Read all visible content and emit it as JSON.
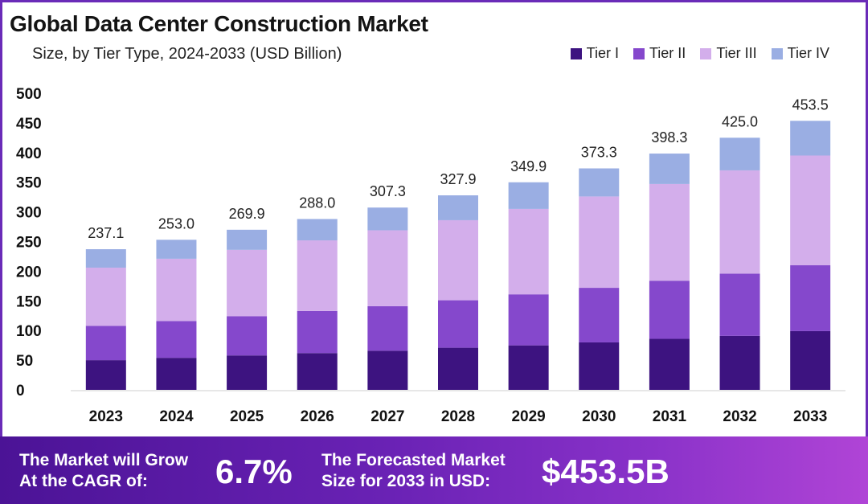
{
  "header": {
    "title": "Global Data Center Construction Market",
    "subtitle": "Size, by Tier Type, 2024-2033 (USD Billion)"
  },
  "legend": [
    {
      "label": "Tier I",
      "color": "#3d1380"
    },
    {
      "label": "Tier II",
      "color": "#8548cc"
    },
    {
      "label": "Tier III",
      "color": "#d3aeeb"
    },
    {
      "label": "Tier IV",
      "color": "#9aaee3"
    }
  ],
  "chart_data": {
    "type": "bar",
    "stacked": true,
    "categories": [
      "2023",
      "2024",
      "2025",
      "2026",
      "2027",
      "2028",
      "2029",
      "2030",
      "2031",
      "2032",
      "2033"
    ],
    "series": [
      {
        "name": "Tier I",
        "values": [
          50,
          54,
          58,
          62,
          66,
          71,
          75,
          80,
          86,
          91,
          99
        ]
      },
      {
        "name": "Tier II",
        "values": [
          58,
          62,
          66,
          71,
          75,
          80,
          86,
          92,
          98,
          105,
          111
        ]
      },
      {
        "name": "Tier III",
        "values": [
          98,
          105,
          112,
          119,
          128,
          135,
          144,
          154,
          163,
          174,
          185
        ]
      },
      {
        "name": "Tier IV",
        "values": [
          31.1,
          32,
          33.9,
          36,
          38.3,
          41.9,
          44.9,
          47.3,
          51.3,
          55,
          58.5
        ]
      }
    ],
    "totals": [
      "237.1",
      "253.0",
      "269.9",
      "288.0",
      "307.3",
      "327.9",
      "349.9",
      "373.3",
      "398.3",
      "425.0",
      "453.5"
    ],
    "yticks": [
      0,
      50,
      100,
      150,
      200,
      250,
      300,
      350,
      400,
      450,
      500
    ],
    "ylim": [
      0,
      500
    ],
    "grid": false,
    "legend_position": "top-right"
  },
  "banner": {
    "cagr_label": "The Market will Grow\nAt the CAGR of:",
    "cagr_value": "6.7%",
    "forecast_label": "The Forecasted Market\nSize for 2033 in USD:",
    "forecast_value": "$453.5B"
  }
}
